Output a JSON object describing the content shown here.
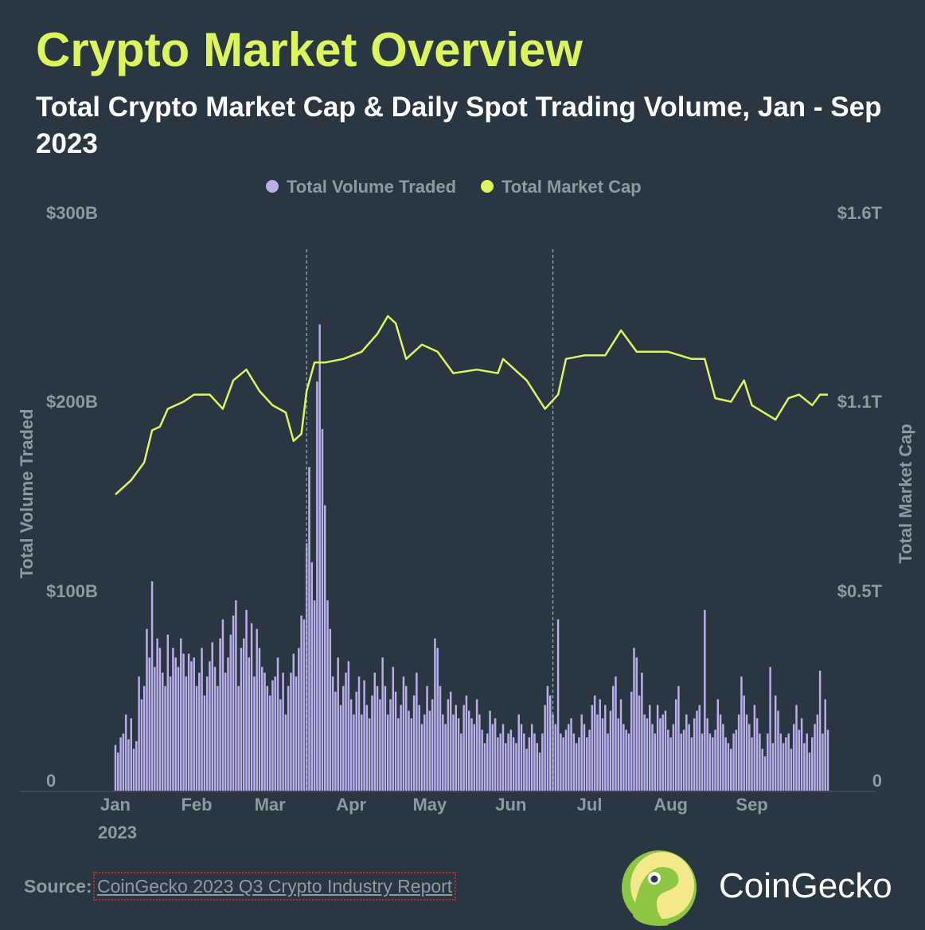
{
  "header": {
    "title": "Crypto Market Overview",
    "subtitle": "Total Crypto Market Cap & Daily Spot Trading Volume, Jan - Sep 2023"
  },
  "footer": {
    "source_label": "Source:",
    "source_link": "CoinGecko 2023 Q3 Crypto Industry Report",
    "brand": "CoinGecko"
  },
  "colors": {
    "background": "#283741",
    "title": "#dcf65a",
    "volume": "#b9aeea",
    "market_cap": "#dcf65a"
  },
  "chart_data": {
    "type": "bar+line",
    "title": "Total Crypto Market Cap & Daily Spot Trading Volume, Jan - Sep 2023",
    "legend": [
      "Total Volume Traded",
      "Total Market Cap"
    ],
    "legend_position": "top-center",
    "ylabel_left": "Total Volume Traded",
    "ylabel_right": "Total Market Cap",
    "ylim_left_billions": [
      0,
      300
    ],
    "ylim_right_trillions": [
      0,
      1.6
    ],
    "left_ticks": [
      "0",
      "$100B",
      "$200B",
      "$300B"
    ],
    "right_ticks": [
      "0",
      "$0.5T",
      "$1.1T",
      "$1.6T"
    ],
    "x_ticks": [
      "Jan",
      "Feb",
      "Mar",
      "Apr",
      "May",
      "Jun",
      "Jul",
      "Aug",
      "Sep"
    ],
    "x_year_label": "2023",
    "x_range_days": [
      0,
      272
    ],
    "reference_line_days": [
      73,
      167
    ],
    "volume_billions_daily": [
      24,
      20,
      28,
      30,
      40,
      27,
      38,
      22,
      26,
      60,
      48,
      55,
      85,
      70,
      110,
      65,
      80,
      75,
      62,
      55,
      82,
      60,
      75,
      70,
      65,
      80,
      72,
      60,
      72,
      68,
      70,
      55,
      62,
      75,
      50,
      60,
      68,
      78,
      65,
      55,
      80,
      90,
      62,
      70,
      82,
      92,
      100,
      55,
      75,
      80,
      95,
      70,
      88,
      60,
      85,
      75,
      65,
      62,
      55,
      50,
      58,
      60,
      70,
      48,
      62,
      40,
      55,
      62,
      72,
      60,
      75,
      92,
      90,
      130,
      170,
      120,
      100,
      215,
      245,
      190,
      150,
      100,
      85,
      60,
      52,
      70,
      45,
      55,
      62,
      68,
      48,
      40,
      52,
      60,
      40,
      58,
      45,
      38,
      50,
      62,
      55,
      48,
      70,
      55,
      40,
      48,
      65,
      52,
      38,
      45,
      60,
      55,
      42,
      38,
      50,
      62,
      45,
      35,
      40,
      55,
      42,
      48,
      80,
      75,
      55,
      40,
      35,
      48,
      52,
      40,
      45,
      38,
      30,
      45,
      50,
      42,
      38,
      35,
      48,
      40,
      32,
      25,
      30,
      42,
      35,
      38,
      28,
      30,
      35,
      25,
      30,
      32,
      28,
      25,
      40,
      35,
      30,
      22,
      28,
      35,
      30,
      25,
      20,
      30,
      45,
      55,
      50,
      40,
      35,
      90,
      30,
      28,
      32,
      35,
      38,
      30,
      25,
      28,
      40,
      35,
      28,
      32,
      45,
      50,
      40,
      48,
      38,
      45,
      30,
      42,
      55,
      60,
      38,
      48,
      35,
      32,
      30,
      52,
      75,
      70,
      50,
      62,
      40,
      38,
      45,
      35,
      30,
      45,
      38,
      40,
      42,
      32,
      28,
      35,
      48,
      55,
      30,
      32,
      40,
      35,
      28,
      38,
      42,
      45,
      30,
      95,
      38,
      30,
      28,
      32,
      48,
      40,
      35,
      28,
      25,
      22,
      30,
      32,
      40,
      60,
      50,
      40,
      35,
      28,
      45,
      38,
      30,
      22,
      18,
      30,
      65,
      25,
      50,
      42,
      30,
      25,
      28,
      30,
      22,
      35,
      45,
      32,
      38,
      25,
      30,
      20,
      28,
      35,
      40,
      63,
      30,
      48,
      32
    ],
    "market_cap_trillions": {
      "day": [
        0,
        6,
        11,
        14,
        17,
        20,
        26,
        30,
        36,
        41,
        45,
        50,
        55,
        60,
        65,
        68,
        71,
        73,
        76,
        80,
        87,
        94,
        100,
        104,
        107,
        111,
        117,
        123,
        129,
        138,
        146,
        148,
        157,
        164,
        169,
        172,
        179,
        187,
        193,
        199,
        211,
        220,
        225,
        229,
        235,
        240,
        243,
        252,
        257,
        261,
        266,
        269,
        272
      ],
      "value": [
        0.83,
        0.87,
        0.92,
        1.01,
        1.02,
        1.07,
        1.09,
        1.11,
        1.11,
        1.07,
        1.15,
        1.18,
        1.12,
        1.08,
        1.06,
        0.98,
        1.0,
        1.12,
        1.2,
        1.2,
        1.21,
        1.23,
        1.28,
        1.33,
        1.31,
        1.21,
        1.25,
        1.23,
        1.17,
        1.18,
        1.17,
        1.21,
        1.15,
        1.07,
        1.11,
        1.21,
        1.22,
        1.22,
        1.29,
        1.23,
        1.23,
        1.21,
        1.21,
        1.1,
        1.09,
        1.15,
        1.08,
        1.04,
        1.1,
        1.11,
        1.08,
        1.11,
        1.11
      ]
    }
  }
}
